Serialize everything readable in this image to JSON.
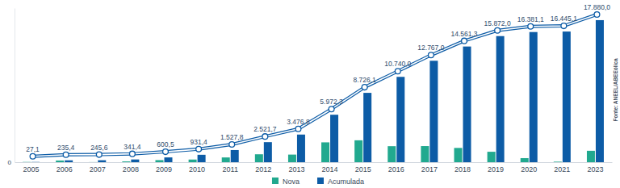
{
  "chart_data": {
    "type": "bar",
    "categories": [
      "2005",
      "2006",
      "2007",
      "2008",
      "2009",
      "2010",
      "2011",
      "2012",
      "2013",
      "2014",
      "2015",
      "2016",
      "2017",
      "2018",
      "2019",
      "2020",
      "2021",
      "2023"
    ],
    "series": [
      {
        "name": "Nova",
        "color": "#21a98f",
        "values": [
          27.1,
          208.3,
          10.2,
          95.8,
          259.1,
          330.9,
          596.4,
          993.9,
          955.1,
          2495.5,
          2753.8,
          2013.9,
          2027.0,
          1794.3,
          1310.7,
          509.1,
          64.0,
          1434.9
        ]
      },
      {
        "name": "Acumulada",
        "color": "#0d5ca6",
        "marker": "circle",
        "data_labels": true,
        "values": [
          27.1,
          235.4,
          245.6,
          341.4,
          600.5,
          931.4,
          1527.8,
          2521.7,
          3476.8,
          5972.3,
          8726.1,
          10740.0,
          12767.0,
          14561.3,
          15872.0,
          16381.1,
          16445.1,
          17880.0
        ],
        "value_labels": [
          "27,1",
          "235,4",
          "245,6",
          "341,4",
          "600,5",
          "931,4",
          "1.527,8",
          "2.521,7",
          "3.476,8",
          "5.972,3",
          "8.726,1",
          "10.740,0",
          "12.767,0",
          "14.561,3",
          "15.872,0",
          "16.381,1",
          "16.445,1",
          "17.880,0"
        ]
      }
    ],
    "ylim": [
      0,
      19400
    ],
    "yticks": [
      0
    ],
    "grid": false,
    "legend": "bottom",
    "source": "Fonte: ANEEL/ABEEólica"
  }
}
